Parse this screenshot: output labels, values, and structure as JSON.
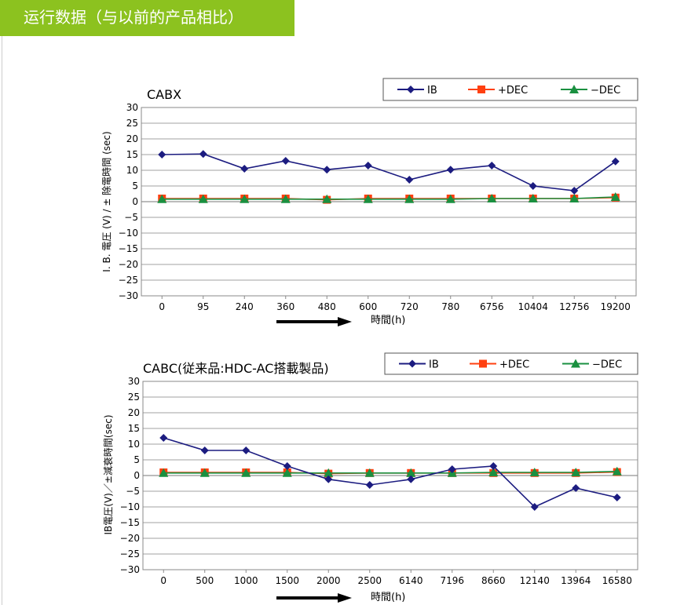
{
  "header": {
    "title": "运行数据（与以前的产品相比）"
  },
  "colors": {
    "header_bg": "#8cc21f",
    "IB": "#1c1c80",
    "+DEC": "#ff4010",
    "-DEC": "#1a9040",
    "grid": "#a0a0a0"
  },
  "chart_data": [
    {
      "type": "line",
      "title": "CABX",
      "ylabel": "I. B. 電圧 (V) / ± 除電時間 (sec)",
      "xlabel": "時間(h)",
      "ylim": [
        -30,
        30
      ],
      "yticks": [
        30,
        25,
        20,
        15,
        10,
        5,
        0,
        -5,
        -10,
        -15,
        -20,
        -25,
        -30
      ],
      "grid": true,
      "legend": "top-right",
      "categories": [
        "0",
        "95",
        "240",
        "360",
        "480",
        "600",
        "720",
        "780",
        "6756",
        "10404",
        "12756",
        "19200"
      ],
      "series": [
        {
          "name": "IB",
          "marker": "diamond",
          "values": [
            15,
            15.2,
            10.5,
            13,
            10.2,
            11.5,
            7,
            10.2,
            11.5,
            5,
            3.5,
            12.8
          ]
        },
        {
          "name": "+DEC",
          "marker": "square",
          "values": [
            1,
            1,
            1,
            1,
            0.6,
            1,
            1,
            1,
            1,
            1,
            1,
            1.3
          ]
        },
        {
          "name": "−DEC",
          "marker": "triangle",
          "values": [
            0.8,
            0.8,
            0.8,
            0.8,
            0.8,
            0.8,
            0.8,
            0.8,
            1,
            1,
            1,
            1.5
          ]
        }
      ]
    },
    {
      "type": "line",
      "title": "CABC(従来品:HDC-AC搭載製品)",
      "ylabel": "IB電圧(V)／±減衰時間(sec)",
      "xlabel": "時間(h)",
      "ylim": [
        -30,
        30
      ],
      "yticks": [
        30,
        25,
        20,
        15,
        10,
        5,
        0,
        -5,
        -10,
        -15,
        -20,
        -25,
        -30
      ],
      "grid": true,
      "legend": "top-right",
      "categories": [
        "0",
        "500",
        "1000",
        "1500",
        "2000",
        "2500",
        "6140",
        "7196",
        "8660",
        "12140",
        "13964",
        "16580"
      ],
      "series": [
        {
          "name": "IB",
          "marker": "diamond",
          "values": [
            12,
            8,
            8,
            3,
            -1.2,
            -3,
            -1.2,
            2,
            3,
            -10,
            -4,
            -7
          ]
        },
        {
          "name": "+DEC",
          "marker": "square",
          "values": [
            1,
            1,
            1,
            1,
            0.6,
            0.8,
            0.8,
            0.8,
            0.8,
            0.8,
            0.8,
            1.1
          ]
        },
        {
          "name": "−DEC",
          "marker": "triangle",
          "values": [
            0.8,
            0.8,
            0.8,
            0.8,
            0.8,
            0.8,
            0.8,
            0.8,
            1,
            1,
            1,
            1.3
          ]
        }
      ]
    }
  ]
}
